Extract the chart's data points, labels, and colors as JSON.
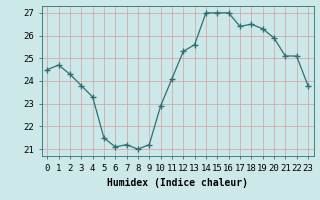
{
  "x": [
    0,
    1,
    2,
    3,
    4,
    5,
    6,
    7,
    8,
    9,
    10,
    11,
    12,
    13,
    14,
    15,
    16,
    17,
    18,
    19,
    20,
    21,
    22,
    23
  ],
  "y": [
    24.5,
    24.7,
    24.3,
    23.8,
    23.3,
    21.5,
    21.1,
    21.2,
    21.0,
    21.2,
    22.9,
    24.1,
    25.3,
    25.6,
    27.0,
    27.0,
    27.0,
    26.4,
    26.5,
    26.3,
    25.9,
    25.1,
    25.1,
    23.8
  ],
  "line_color": "#2e7070",
  "marker": "+",
  "marker_size": 4,
  "bg_color": "#cce8e8",
  "grid_color": "#d4a0a0",
  "xlabel": "Humidex (Indice chaleur)",
  "ylim": [
    20.7,
    27.3
  ],
  "yticks": [
    21,
    22,
    23,
    24,
    25,
    26,
    27
  ],
  "xticks": [
    0,
    1,
    2,
    3,
    4,
    5,
    6,
    7,
    8,
    9,
    10,
    11,
    12,
    13,
    14,
    15,
    16,
    17,
    18,
    19,
    20,
    21,
    22,
    23
  ],
  "xtick_labels": [
    "0",
    "1",
    "2",
    "3",
    "4",
    "5",
    "6",
    "7",
    "8",
    "9",
    "10",
    "11",
    "12",
    "13",
    "14",
    "15",
    "16",
    "17",
    "18",
    "19",
    "20",
    "21",
    "22",
    "23"
  ],
  "axis_fontsize": 7,
  "tick_fontsize": 6.5
}
